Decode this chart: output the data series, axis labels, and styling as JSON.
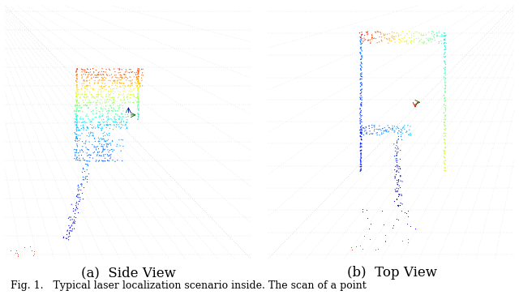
{
  "figure_width": 6.4,
  "figure_height": 3.64,
  "dpi": 100,
  "background_color": "#ffffff",
  "image_bg_color": "#cccccc",
  "grid_dot_color": "#999999",
  "left_caption": "(a)  Side View",
  "right_caption": "(b)  Top View",
  "footer_text": "Fig. 1.   Typical laser localization scenario inside. The scan of a point",
  "caption_fontsize": 12,
  "footer_fontsize": 9
}
